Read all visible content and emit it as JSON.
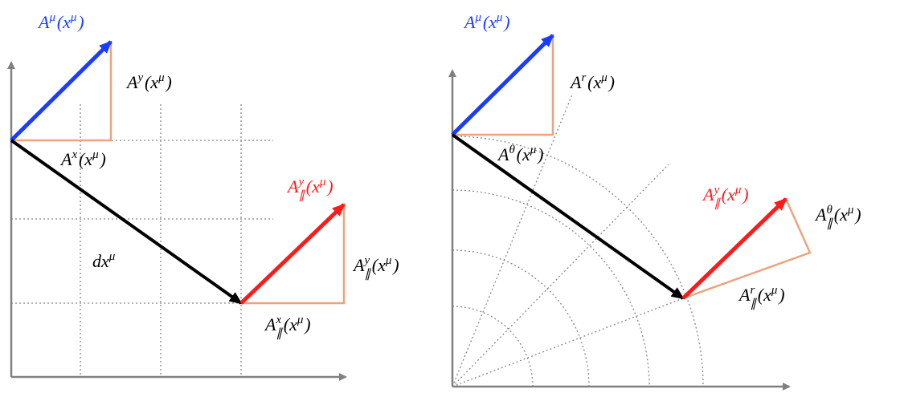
{
  "labels": [
    {
      "color": "#1a3cff",
      "parts": [
        {
          "base": "A",
          "sup": "μ"
        },
        {
          "base": "(x",
          "sup": "μ"
        },
        {
          "base": ")"
        }
      ]
    },
    {
      "color": "#000000",
      "parts": [
        {
          "base": "A",
          "sup": "y"
        },
        {
          "base": "(x",
          "sup": "μ"
        },
        {
          "base": ")"
        }
      ]
    },
    {
      "color": "#000000",
      "parts": [
        {
          "base": "A",
          "sup": "x"
        },
        {
          "base": "(x",
          "sup": "μ"
        },
        {
          "base": ")"
        }
      ]
    },
    {
      "color": "#000000",
      "parts": [
        {
          "base": "dx",
          "sup": "μ"
        }
      ]
    },
    {
      "color": "#ff1a1a",
      "parts": [
        {
          "base": "A",
          "sup": "y",
          "sub": "∥"
        },
        {
          "base": "(x",
          "sup": "μ"
        },
        {
          "base": ")"
        }
      ]
    },
    {
      "color": "#000000",
      "parts": [
        {
          "base": "A",
          "sup": "y",
          "sub": "∥"
        },
        {
          "base": "(x",
          "sup": "μ"
        },
        {
          "base": ")"
        }
      ]
    },
    {
      "color": "#000000",
      "parts": [
        {
          "base": "A",
          "sup": "x",
          "sub": "∥"
        },
        {
          "base": "(x",
          "sup": "μ"
        },
        {
          "base": ")"
        }
      ]
    },
    {
      "color": "#1a3cff",
      "parts": [
        {
          "base": "A",
          "sup": "μ"
        },
        {
          "base": "(x",
          "sup": "μ"
        },
        {
          "base": ")"
        }
      ]
    },
    {
      "color": "#000000",
      "parts": [
        {
          "base": "A",
          "sup": "r"
        },
        {
          "base": "(x",
          "sup": "μ"
        },
        {
          "base": ")"
        }
      ]
    },
    {
      "color": "#000000",
      "parts": [
        {
          "base": "A",
          "sup": "θ"
        },
        {
          "base": "(x",
          "sup": "μ"
        },
        {
          "base": ")"
        }
      ]
    },
    {
      "color": "#ff1a1a",
      "parts": [
        {
          "base": "A",
          "sup": "y",
          "sub": "∥"
        },
        {
          "base": "(x",
          "sup": "μ"
        },
        {
          "base": ")"
        }
      ]
    },
    {
      "color": "#000000",
      "parts": [
        {
          "base": "A",
          "sup": "θ",
          "sub": "∥"
        },
        {
          "base": "(x",
          "sup": "μ"
        },
        {
          "base": ")"
        }
      ]
    },
    {
      "color": "#000000",
      "parts": [
        {
          "base": "A",
          "sup": "r",
          "sub": "∥"
        },
        {
          "base": "(x",
          "sup": "μ"
        },
        {
          "base": ")"
        }
      ]
    }
  ]
}
